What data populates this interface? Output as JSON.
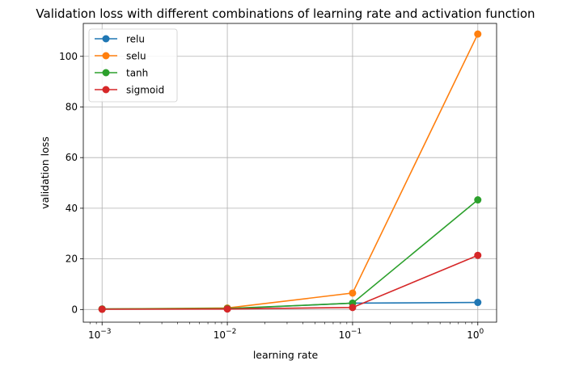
{
  "chart_data": {
    "type": "line",
    "title": "Validation loss with different combinations of learning rate and activation function",
    "xlabel": "learning rate",
    "ylabel": "validation loss",
    "xscale": "log",
    "x": [
      0.001,
      0.01,
      0.1,
      1
    ],
    "x_tick_labels": [
      {
        "base": "10",
        "exp": "−3"
      },
      {
        "base": "10",
        "exp": "−2"
      },
      {
        "base": "10",
        "exp": "−1"
      },
      {
        "base": "10",
        "exp": "0"
      }
    ],
    "y_ticks": [
      0,
      20,
      40,
      60,
      80,
      100
    ],
    "ylim": [
      -5,
      113
    ],
    "grid": true,
    "legend_position": "upper-left",
    "series": [
      {
        "name": "relu",
        "color": "#1f77b4",
        "values": [
          0.2,
          0.3,
          2.5,
          2.8
        ]
      },
      {
        "name": "selu",
        "color": "#ff7f0e",
        "values": [
          0.2,
          0.6,
          6.5,
          108.8
        ]
      },
      {
        "name": "tanh",
        "color": "#2ca02c",
        "values": [
          0.2,
          0.4,
          2.5,
          43.3
        ]
      },
      {
        "name": "sigmoid",
        "color": "#d62728",
        "values": [
          0.1,
          0.2,
          0.8,
          21.4
        ]
      }
    ]
  }
}
